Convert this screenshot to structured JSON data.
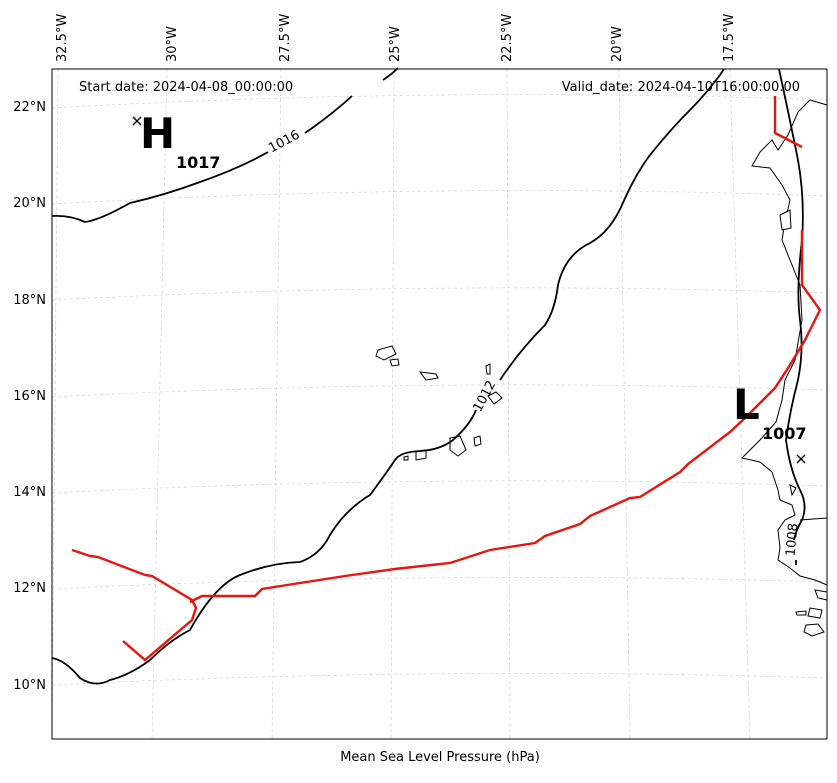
{
  "map": {
    "start_date": "Start date: 2024-04-08_00:00:00",
    "valid_date": "Valid_date: 2024-04-10T16:00:00.00",
    "caption": "Mean Sea Level Pressure (hPa)",
    "lon_ticks": [
      "32.5°W",
      "30°W",
      "27.5°W",
      "25°W",
      "22.5°W",
      "20°W",
      "17.5°W"
    ],
    "lat_ticks": [
      "22°N",
      "20°N",
      "18°N",
      "16°N",
      "14°N",
      "12°N",
      "10°N"
    ],
    "isobar_labels": [
      "1016",
      "1012",
      "1008"
    ],
    "high": {
      "letter": "H",
      "value": "1017"
    },
    "low": {
      "letter": "L",
      "value": "1007"
    },
    "colors": {
      "isobar": "#000000",
      "front": "#e8140f",
      "grid": "#d0d0d0"
    }
  }
}
